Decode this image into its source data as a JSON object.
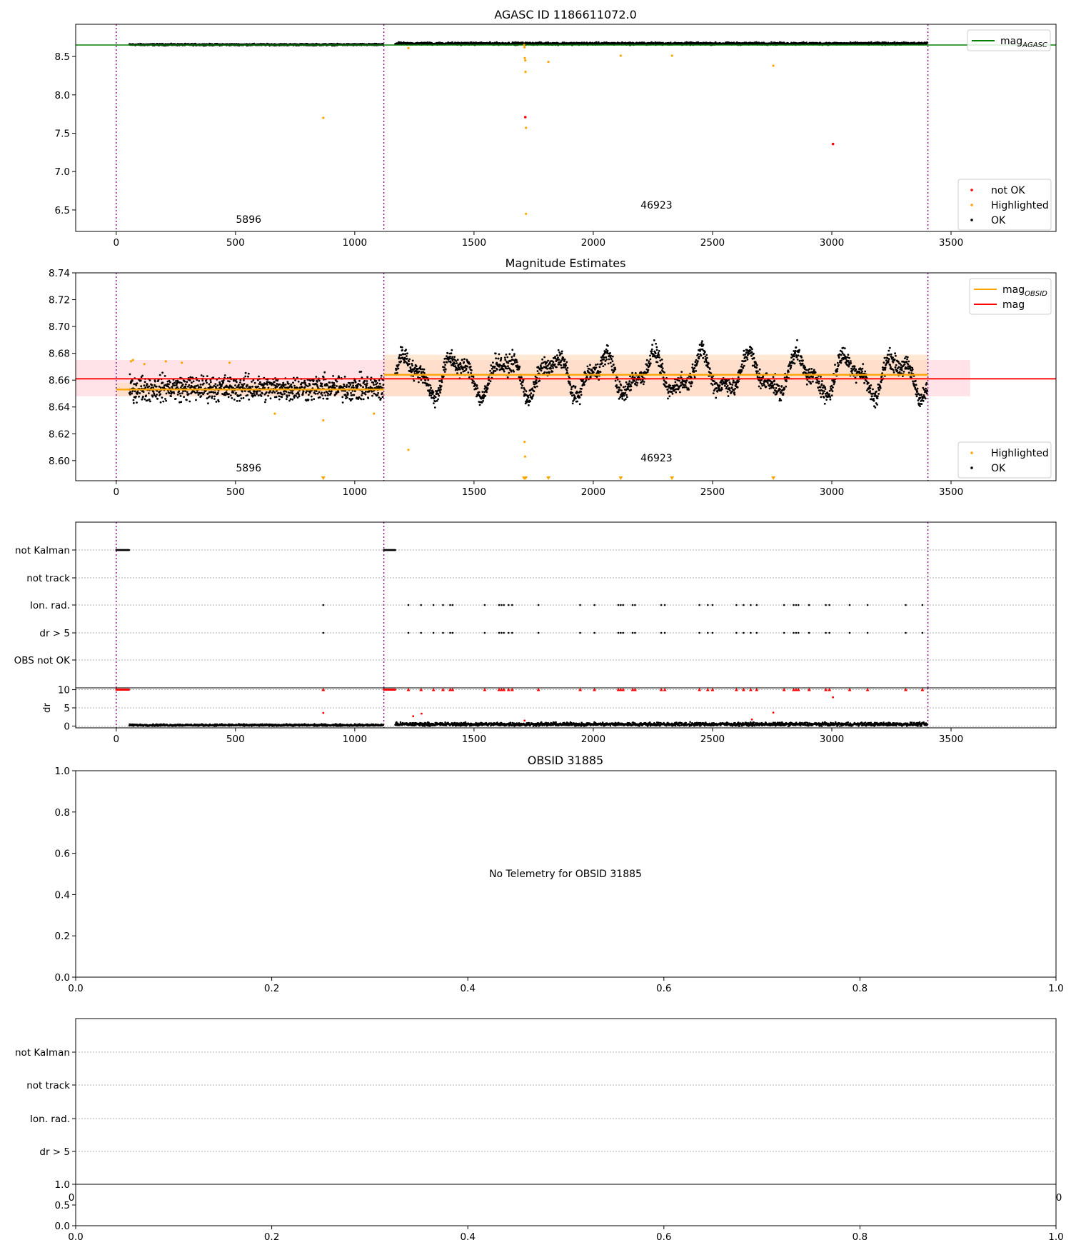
{
  "figure": {
    "title_top": "AGASC ID 1186611072.0",
    "title_mag_estimates": "Magnitude Estimates",
    "title_obsid": "OBSID 31885",
    "no_telemetry_text": "No Telemetry for OBSID 31885"
  },
  "colors": {
    "ok": "#000000",
    "highlighted": "#ffa500",
    "not_ok": "#ff0000",
    "mag_agasc": "#008000",
    "mag_obsid": "#ffa500",
    "mag": "#ff0000",
    "obs_boundary": "#800080",
    "band_mag": "#ffc0cb",
    "band_obsid": "#ffdab9",
    "grid": "#b0b0b0"
  },
  "chart_data": [
    {
      "id": "top",
      "type": "scatter",
      "title": "AGASC ID 1186611072.0",
      "xlim": [
        -170,
        3940
      ],
      "ylim": [
        6.22,
        8.92
      ],
      "xticks": [
        0,
        500,
        1000,
        1500,
        2000,
        2500,
        3000,
        3500
      ],
      "yticks": [
        6.5,
        7.0,
        7.5,
        8.0,
        8.5
      ],
      "ytick_labels": [
        "6.5",
        "7.0",
        "7.5",
        "8.0",
        "8.5"
      ],
      "obs_boundaries": [
        0,
        1122,
        3403
      ],
      "obs_labels": [
        {
          "text": "5896",
          "x": 555,
          "y": 6.33
        },
        {
          "text": "46923",
          "x": 2265,
          "y": 6.52
        }
      ],
      "hlines": [
        {
          "name": "mag_agasc",
          "y": 8.65,
          "color": "#008000"
        }
      ],
      "ok_segments": [
        {
          "x0": 55,
          "x1": 1120,
          "center": 8.655,
          "spread": 0.03
        },
        {
          "x0": 1170,
          "x1": 3400,
          "center": 8.668,
          "spread": 0.045
        }
      ],
      "highlighted_points": [
        [
          868,
          7.7
        ],
        [
          1225,
          8.61
        ],
        [
          1710,
          8.65
        ],
        [
          1712,
          8.62
        ],
        [
          1713,
          8.48
        ],
        [
          1715,
          8.45
        ],
        [
          1716,
          8.3
        ],
        [
          1718,
          7.57
        ],
        [
          1718,
          6.45
        ],
        [
          1812,
          8.43
        ],
        [
          2115,
          8.51
        ],
        [
          2330,
          8.51
        ],
        [
          2755,
          8.38
        ]
      ],
      "not_ok_points": [
        [
          1715,
          7.71
        ],
        [
          3005,
          7.36
        ]
      ],
      "legend_upper": [
        {
          "label": "mag",
          "sub": "AGASC",
          "kind": "line",
          "color": "#008000"
        }
      ],
      "legend_lower": [
        {
          "label": "not OK",
          "kind": "dot",
          "color": "#ff0000"
        },
        {
          "label": "Highlighted",
          "kind": "dot",
          "color": "#ffa500"
        },
        {
          "label": "OK",
          "kind": "dot",
          "color": "#000000"
        }
      ]
    },
    {
      "id": "estimates",
      "type": "scatter",
      "title": "Magnitude Estimates",
      "xlim": [
        -170,
        3940
      ],
      "ylim": [
        8.585,
        8.74
      ],
      "xticks": [
        0,
        500,
        1000,
        1500,
        2000,
        2500,
        3000,
        3500
      ],
      "yticks": [
        8.6,
        8.62,
        8.64,
        8.66,
        8.68,
        8.7,
        8.72,
        8.74
      ],
      "ytick_labels": [
        "8.60",
        "8.62",
        "8.64",
        "8.66",
        "8.68",
        "8.70",
        "8.72",
        "8.74"
      ],
      "obs_boundaries": [
        0,
        1122,
        3403
      ],
      "obs_labels": [
        {
          "text": "5896",
          "x": 555,
          "y": 8.592
        },
        {
          "text": "46923",
          "x": 2265,
          "y": 8.5995
        }
      ],
      "mag": {
        "value": 8.661,
        "band": [
          8.648,
          8.675
        ],
        "x_range": [
          -170,
          3580
        ]
      },
      "mag_obsid": [
        {
          "x0": 0,
          "x1": 1122,
          "value": 8.653,
          "band": [
            8.648,
            8.658
          ]
        },
        {
          "x0": 1122,
          "x1": 3403,
          "value": 8.664,
          "band": [
            8.648,
            8.679
          ]
        }
      ],
      "ok_segments": [
        {
          "x0": 55,
          "x1": 1120,
          "center": 8.654,
          "spread": 0.014,
          "wave_amp": 0.0
        },
        {
          "x0": 1170,
          "x1": 3400,
          "center": 8.664,
          "spread": 0.01,
          "wave_amp": 0.012
        }
      ],
      "highlighted_points": [
        [
          62,
          8.674
        ],
        [
          70,
          8.675
        ],
        [
          118,
          8.672
        ],
        [
          208,
          8.674
        ],
        [
          275,
          8.673
        ],
        [
          475,
          8.673
        ],
        [
          665,
          8.635
        ],
        [
          868,
          8.63
        ],
        [
          1080,
          8.635
        ],
        [
          1225,
          8.608
        ],
        [
          1712,
          8.614
        ],
        [
          1714,
          8.603
        ]
      ],
      "highlighted_offscale_x": [
        868,
        1710,
        1716,
        1812,
        2115,
        2330,
        2755
      ],
      "legend_upper": [
        {
          "label": "mag",
          "sub": "OBSID",
          "kind": "line",
          "color": "#ffa500"
        },
        {
          "label": "mag",
          "sub": "",
          "kind": "line",
          "color": "#ff0000"
        }
      ],
      "legend_lower": [
        {
          "label": "Highlighted",
          "kind": "dot",
          "color": "#ffa500"
        },
        {
          "label": "OK",
          "kind": "dot",
          "color": "#000000"
        }
      ]
    },
    {
      "id": "flags",
      "type": "scatter",
      "xlim": [
        -170,
        3940
      ],
      "xticks": [
        0,
        500,
        1000,
        1500,
        2000,
        2500,
        3000,
        3500
      ],
      "flag_rows": [
        "not Kalman",
        "not track",
        "Ion. rad.",
        "dr > 5",
        "OBS not OK"
      ],
      "obs_boundaries": [
        0,
        1122,
        3403
      ],
      "not_kalman_ranges": [
        [
          0,
          55
        ],
        [
          1122,
          1170
        ]
      ],
      "event_x": [
        868,
        1225,
        1278,
        1330,
        1370,
        1400,
        1410,
        1545,
        1605,
        1615,
        1625,
        1645,
        1660,
        1770,
        1945,
        2005,
        2105,
        2115,
        2125,
        2165,
        2175,
        2285,
        2300,
        2445,
        2480,
        2500,
        2600,
        2630,
        2660,
        2685,
        2800,
        2840,
        2850,
        2860,
        2905,
        2975,
        2990,
        3075,
        3150,
        3310,
        3380
      ]
    },
    {
      "id": "dr",
      "type": "scatter",
      "ylabel": "dr",
      "ylim": [
        -0.5,
        10.5
      ],
      "yticks": [
        0,
        5,
        10
      ],
      "ytick_labels": [
        "0",
        "5",
        "10"
      ],
      "xlim": [
        -170,
        3940
      ],
      "xticks": [
        0,
        500,
        1000,
        1500,
        2000,
        2500,
        3000,
        3500
      ],
      "obs_boundaries": [
        0,
        1122,
        3403
      ],
      "ok_segments": [
        {
          "x0": 55,
          "x1": 1120,
          "center": 0.25,
          "spread": 0.4
        },
        {
          "x0": 1170,
          "x1": 3400,
          "center": 0.5,
          "spread": 0.7
        }
      ],
      "not_ok_points": [
        [
          868,
          3.6
        ],
        [
          1245,
          2.7
        ],
        [
          1280,
          3.4
        ],
        [
          1712,
          1.5
        ],
        [
          2665,
          1.8
        ],
        [
          2755,
          3.7
        ],
        [
          3005,
          7.9
        ]
      ],
      "capped_value": 10
    },
    {
      "id": "obsid",
      "type": "scatter",
      "title": "OBSID 31885",
      "xlim": [
        0,
        1
      ],
      "ylim": [
        0,
        1
      ],
      "xticks": [
        0.0,
        0.2,
        0.4,
        0.6,
        0.8,
        1.0
      ],
      "xtick_labels": [
        "0.0",
        "0.2",
        "0.4",
        "0.6",
        "0.8",
        "1.0"
      ],
      "yticks": [
        0.0,
        0.2,
        0.4,
        0.6,
        0.8,
        1.0
      ],
      "ytick_labels": [
        "0.0",
        "0.2",
        "0.4",
        "0.6",
        "0.8",
        "1.0"
      ],
      "annotation": "No Telemetry for OBSID 31885"
    },
    {
      "id": "obsid_flags",
      "type": "scatter",
      "flag_rows": [
        "not Kalman",
        "not track",
        "Ion. rad.",
        "dr > 5"
      ],
      "overlap_tick_labels": [
        "0",
        "0"
      ]
    },
    {
      "id": "bottom",
      "type": "scatter",
      "xlim": [
        0,
        1
      ],
      "ylim": [
        0,
        1
      ],
      "xticks": [
        0.0,
        0.2,
        0.4,
        0.6,
        0.8,
        1.0
      ],
      "xtick_labels": [
        "0.0",
        "0.2",
        "0.4",
        "0.6",
        "0.8",
        "1.0"
      ],
      "yticks": [
        0.0,
        0.5,
        1.0
      ],
      "ytick_labels": [
        "0.0",
        "0.5",
        "1.0"
      ]
    }
  ]
}
